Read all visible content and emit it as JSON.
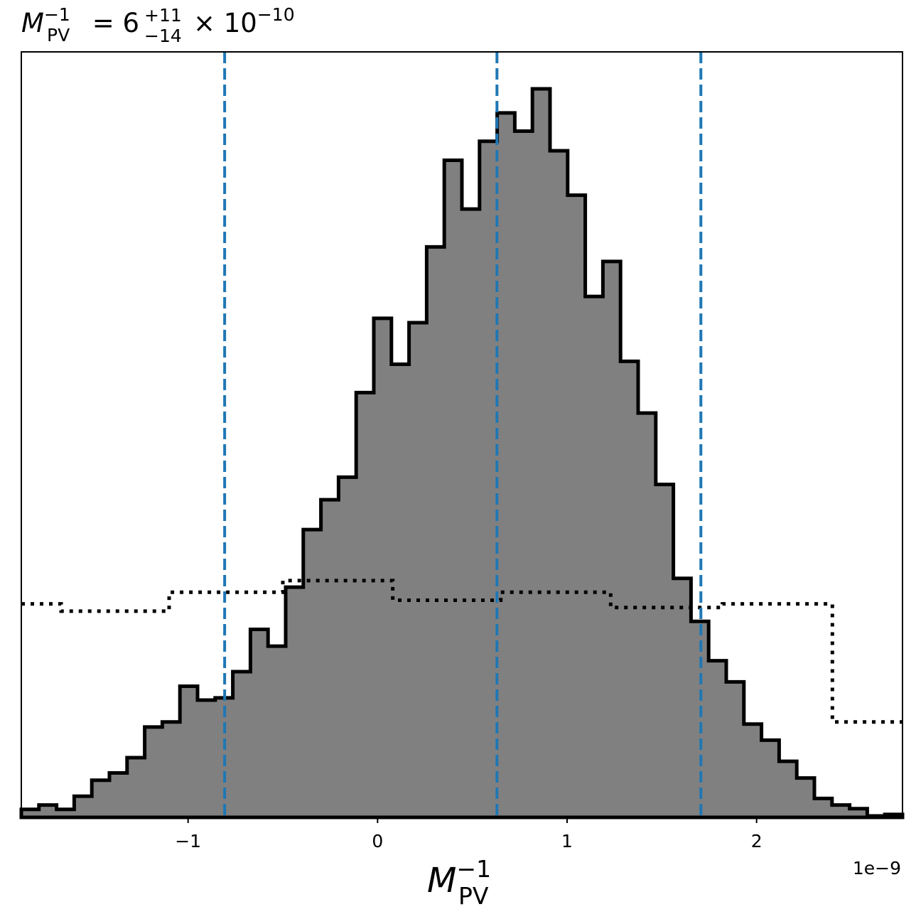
{
  "chart_data": {
    "type": "histogram",
    "title": {
      "symbol": "M",
      "sup": "−1",
      "sub": "PV",
      "equals": " = 6",
      "err_plus": "+11",
      "err_minus": "−14",
      "times": "× 10",
      "exp": "−10"
    },
    "xlabel": {
      "symbol": "M",
      "sup": "−1",
      "sub": "PV"
    },
    "x_offset_label": "1e−9",
    "xlim": [
      -1.88e-09,
      2.77e-09
    ],
    "ylim": [
      0,
      1.0
    ],
    "x_ticks": [
      {
        "value": -1e-09,
        "label": "−1"
      },
      {
        "value": 0,
        "label": "0"
      },
      {
        "value": 1e-09,
        "label": "1"
      },
      {
        "value": 2e-09,
        "label": "2"
      }
    ],
    "y_ticks_shown": false,
    "grid": false,
    "colors": {
      "fill": "#808080",
      "edge": "#000000",
      "quantile_line": "#1f77b4",
      "prior_line": "#000000"
    },
    "series": [
      {
        "style": "filled-step",
        "bin_edges": [
          -1.88e-09,
          -1.787e-09,
          -1.694e-09,
          -1.601e-09,
          -1.508e-09,
          -1.415e-09,
          -1.322e-09,
          -1.229e-09,
          -1.136e-09,
          -1.043e-09,
          -9.5e-10,
          -8.57e-10,
          -7.64e-10,
          -6.71e-10,
          -5.78e-10,
          -4.85e-10,
          -3.92e-10,
          -2.99e-10,
          -2.06e-10,
          -1.13e-10,
          -2e-11,
          7.3e-11,
          1.66e-10,
          2.59e-10,
          3.52e-10,
          4.45e-10,
          5.38e-10,
          6.31e-10,
          7.24e-10,
          8.17e-10,
          9.1e-10,
          1.003e-09,
          1.096e-09,
          1.189e-09,
          1.282e-09,
          1.375e-09,
          1.468e-09,
          1.561e-09,
          1.654e-09,
          1.747e-09,
          1.84e-09,
          1.933e-09,
          2.026e-09,
          2.119e-09,
          2.212e-09,
          2.305e-09,
          2.398e-09,
          2.491e-09,
          2.584e-09,
          2.677e-09,
          2.77e-09
        ],
        "heights": [
          0.011,
          0.017,
          0.011,
          0.029,
          0.051,
          0.061,
          0.082,
          0.124,
          0.131,
          0.18,
          0.161,
          0.164,
          0.2,
          0.258,
          0.235,
          0.316,
          0.395,
          0.436,
          0.467,
          0.583,
          0.685,
          0.622,
          0.679,
          0.783,
          0.902,
          0.835,
          0.928,
          0.967,
          0.942,
          1.0,
          0.915,
          0.854,
          0.715,
          0.763,
          0.626,
          0.555,
          0.457,
          0.328,
          0.269,
          0.215,
          0.186,
          0.128,
          0.106,
          0.077,
          0.054,
          0.026,
          0.017,
          0.012,
          0.002,
          0.004
        ]
      },
      {
        "style": "dotted-step",
        "bin_edges": [
          -1.88e-09,
          -1.67e-09,
          -1.1e-09,
          -5e-10,
          8e-11,
          6.5e-10,
          1.23e-09,
          1.82e-09,
          2.4e-09,
          2.77e-09
        ],
        "heights": [
          0.293,
          0.283,
          0.309,
          0.325,
          0.298,
          0.309,
          0.288,
          0.293,
          0.131
        ]
      }
    ],
    "quantile_lines": [
      -8.07e-10,
      6.3e-10,
      1.706e-09
    ]
  }
}
